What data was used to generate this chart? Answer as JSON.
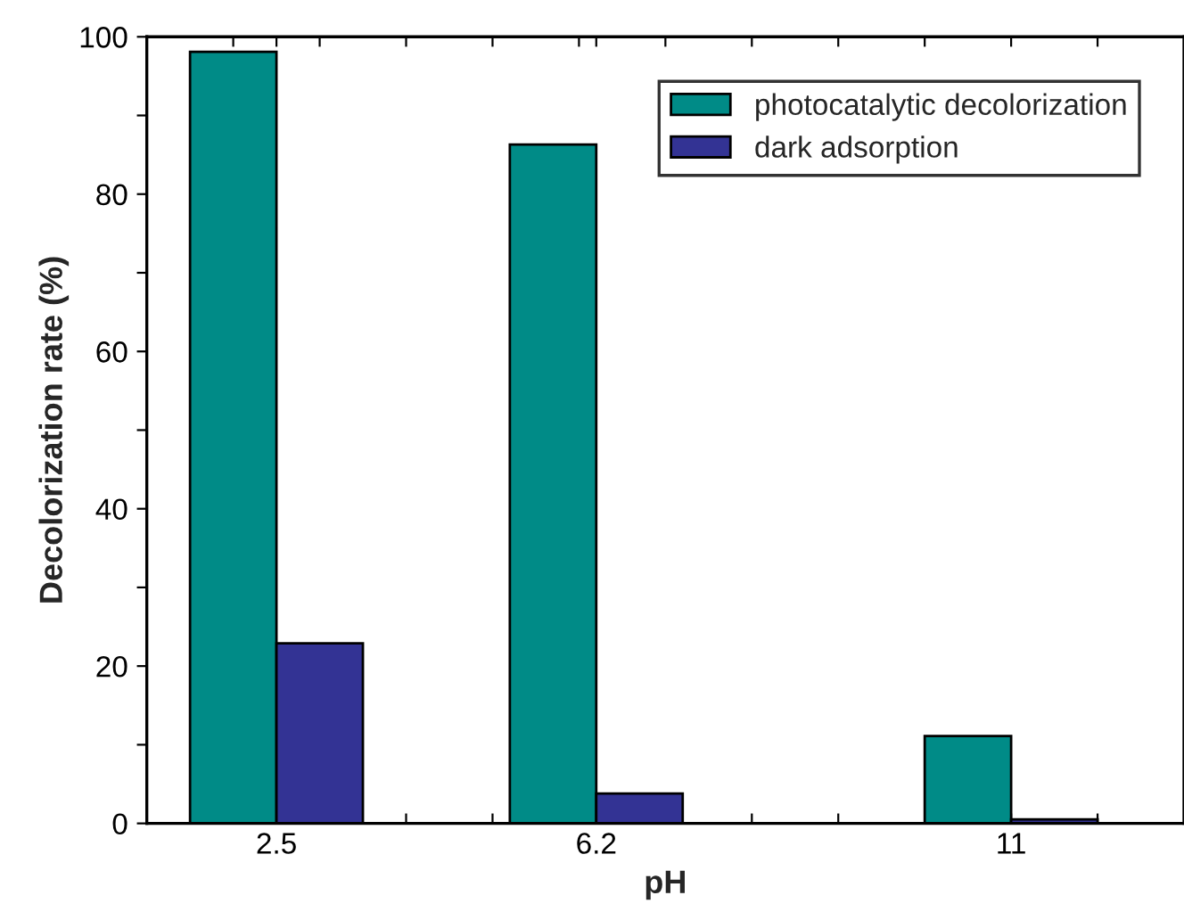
{
  "chart_data": {
    "type": "bar",
    "xlabel": "pH",
    "ylabel": "Decolorization rate (%)",
    "x": [
      2.5,
      6.2,
      11
    ],
    "series": [
      {
        "name": "photocatalytic decolorization",
        "color": "#008b87",
        "values": [
          98.1,
          86.3,
          11.1
        ]
      },
      {
        "name": "dark adsorption",
        "color": "#333394",
        "values": [
          22.9,
          3.8,
          0.5
        ]
      }
    ],
    "xlim": [
      1,
      13
    ],
    "xticks": [
      {
        "value": 2,
        "label": null
      },
      2.5,
      {
        "value": 3,
        "label": null
      },
      {
        "value": 4,
        "label": null
      },
      {
        "value": 5,
        "label": null
      },
      {
        "value": 6,
        "label": null
      },
      6.2,
      {
        "value": 7,
        "label": null
      },
      {
        "value": 8,
        "label": null
      },
      {
        "value": 9,
        "label": null
      },
      {
        "value": 10,
        "label": null
      },
      11,
      {
        "value": 12,
        "label": null
      }
    ],
    "ylim": [
      0,
      100
    ],
    "yticks": [
      0,
      {
        "value": 10,
        "label": null
      },
      20,
      {
        "value": 30,
        "label": null
      },
      40,
      {
        "value": 50,
        "label": null
      },
      60,
      {
        "value": 70,
        "label": null
      },
      80,
      {
        "value": 90,
        "label": null
      },
      100
    ],
    "grid": false,
    "legend": "top right"
  }
}
